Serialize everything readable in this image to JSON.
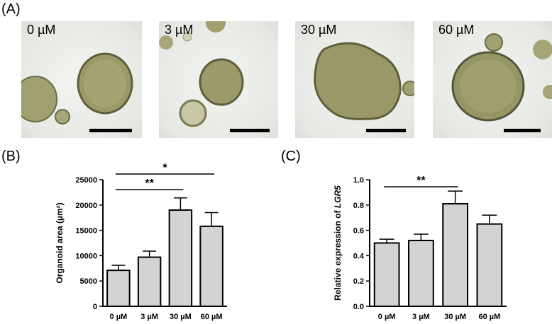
{
  "panel_a": {
    "letter": "(A)",
    "images": [
      {
        "label": "0 µM"
      },
      {
        "label": "3 µM"
      },
      {
        "label": "30 µM"
      },
      {
        "label": "60 µM"
      }
    ]
  },
  "panel_b": {
    "letter": "(B)"
  },
  "panel_c": {
    "letter": "(C)"
  },
  "colors": {
    "bar_fill": "#d3d3d3",
    "bar_stroke": "#000000",
    "organoid": "#8f8f5c"
  },
  "chart_data": [
    {
      "type": "bar",
      "categories": [
        "0 µM",
        "3 µM",
        "30 µM",
        "60 µM"
      ],
      "values": [
        7100,
        9700,
        19000,
        15800
      ],
      "errors": [
        1000,
        1200,
        2400,
        2700
      ],
      "ylabel": "Organoid area (µm²)",
      "ylim": [
        0,
        25000
      ],
      "yticks": [
        0,
        5000,
        10000,
        15000,
        20000,
        25000
      ],
      "significance": [
        {
          "from": 0,
          "to": 2,
          "label": "**"
        },
        {
          "from": 0,
          "to": 3,
          "label": "*"
        }
      ]
    },
    {
      "type": "bar",
      "categories": [
        "0 µM",
        "3 µM",
        "30 µM",
        "60 µM"
      ],
      "values": [
        0.5,
        0.52,
        0.81,
        0.65
      ],
      "errors": [
        0.03,
        0.05,
        0.1,
        0.07
      ],
      "ylabel_prefix": "Relative expression of ",
      "ylabel_gene": "LGR5",
      "ylim": [
        0,
        1.0
      ],
      "yticks": [
        "0.0",
        "0.2",
        "0.4",
        "0.6",
        "0.8",
        "1.0"
      ],
      "significance": [
        {
          "from": 0,
          "to": 2,
          "label": "**"
        }
      ]
    }
  ]
}
